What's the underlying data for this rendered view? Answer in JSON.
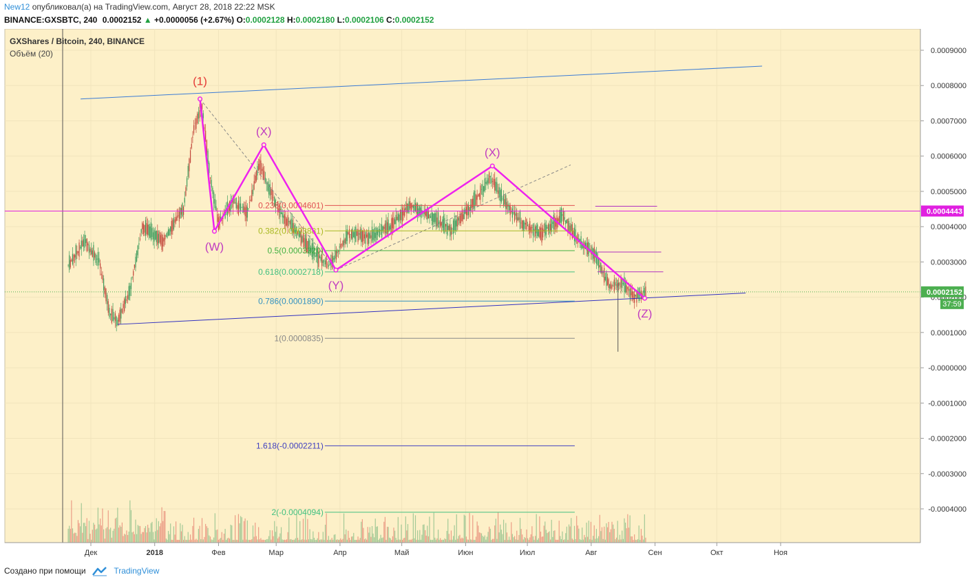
{
  "header": {
    "user": "New12",
    "published": "опубликовал(а) на TradingView.com, Август 28, 2018 22:22 MSK",
    "symbol": "BINANCE:GXSBTC, 240",
    "last": "0.0002152",
    "change": "+0.0000056 (+2.67%)",
    "o_label": "O:",
    "o": "0.0002128",
    "h_label": "H:",
    "h": "0.0002180",
    "l_label": "L:",
    "l": "0.0002106",
    "c_label": "C:",
    "c": "0.0002152"
  },
  "chart_data": {
    "type": "candlestick",
    "title": "GXShares / Bitcoin, 240, BINANCE",
    "subtitle": "Объём (20)",
    "ylim": [
      -0.00049,
      0.00094
    ],
    "y_ticks": [
      {
        "v": 0.0009,
        "label": "0.0009000"
      },
      {
        "v": 0.0008,
        "label": "0.0008000"
      },
      {
        "v": 0.0007,
        "label": "0.0007000"
      },
      {
        "v": 0.0006,
        "label": "0.0006000"
      },
      {
        "v": 0.0005,
        "label": "0.0005000"
      },
      {
        "v": 0.0004,
        "label": "0.0004000"
      },
      {
        "v": 0.0003,
        "label": "0.0003000"
      },
      {
        "v": 0.0002,
        "label": "0.0002000"
      },
      {
        "v": 0.0001,
        "label": "0.0001000"
      },
      {
        "v": 0.0,
        "label": "-0.0000000"
      },
      {
        "v": -0.0001,
        "label": "-0.0001000"
      },
      {
        "v": -0.0002,
        "label": "-0.0002000"
      },
      {
        "v": -0.0003,
        "label": "-0.0003000"
      },
      {
        "v": -0.0004,
        "label": "-0.0004000"
      }
    ],
    "x_ticks": [
      "Дек",
      "2018",
      "Фев",
      "Мар",
      "Апр",
      "Май",
      "Июн",
      "Июл",
      "Авг",
      "Сен",
      "Окт",
      "Ноя"
    ],
    "x_tick_days": [
      0,
      31,
      62,
      90,
      121,
      151,
      182,
      212,
      243,
      274,
      304,
      335
    ],
    "price_labels": [
      {
        "label": "0.0004443",
        "v": 0.0004443,
        "color": "#e020e0"
      },
      {
        "label": "0.0002152",
        "v": 0.0002152,
        "color": "#4caf50"
      }
    ],
    "countdown": "37:59",
    "path_points": [
      {
        "date": "2017-11-20",
        "v": 0.00029
      },
      {
        "date": "2017-11-28",
        "v": 0.00036
      },
      {
        "date": "2017-12-05",
        "v": 0.0003
      },
      {
        "date": "2017-12-10",
        "v": 0.00016
      },
      {
        "date": "2017-12-14",
        "v": 0.00013
      },
      {
        "date": "2017-12-20",
        "v": 0.00022
      },
      {
        "date": "2017-12-26",
        "v": 0.0004
      },
      {
        "date": "2018-01-05",
        "v": 0.00036
      },
      {
        "date": "2018-01-15",
        "v": 0.00045
      },
      {
        "date": "2018-01-20",
        "v": 0.00068
      },
      {
        "date": "2018-01-24",
        "v": 0.00074
      },
      {
        "date": "2018-01-28",
        "v": 0.00054
      },
      {
        "date": "2018-02-01",
        "v": 0.00041
      },
      {
        "date": "2018-02-08",
        "v": 0.00047
      },
      {
        "date": "2018-02-15",
        "v": 0.00044
      },
      {
        "date": "2018-02-21",
        "v": 0.00058
      },
      {
        "date": "2018-02-26",
        "v": 0.0005
      },
      {
        "date": "2018-03-04",
        "v": 0.00043
      },
      {
        "date": "2018-03-12",
        "v": 0.00038
      },
      {
        "date": "2018-03-20",
        "v": 0.00032
      },
      {
        "date": "2018-03-27",
        "v": 0.00029
      },
      {
        "date": "2018-04-05",
        "v": 0.00038
      },
      {
        "date": "2018-04-15",
        "v": 0.00037
      },
      {
        "date": "2018-04-25",
        "v": 0.0004
      },
      {
        "date": "2018-05-05",
        "v": 0.00046
      },
      {
        "date": "2018-05-15",
        "v": 0.00043
      },
      {
        "date": "2018-05-25",
        "v": 0.00039
      },
      {
        "date": "2018-06-05",
        "v": 0.00047
      },
      {
        "date": "2018-06-13",
        "v": 0.00054
      },
      {
        "date": "2018-06-20",
        "v": 0.00047
      },
      {
        "date": "2018-06-28",
        "v": 0.00041
      },
      {
        "date": "2018-07-08",
        "v": 0.00038
      },
      {
        "date": "2018-07-18",
        "v": 0.00043
      },
      {
        "date": "2018-07-26",
        "v": 0.00036
      },
      {
        "date": "2018-08-03",
        "v": 0.00032
      },
      {
        "date": "2018-08-10",
        "v": 0.00023
      },
      {
        "date": "2018-08-16",
        "v": 0.00024
      },
      {
        "date": "2018-08-22",
        "v": 0.0002
      },
      {
        "date": "2018-08-28",
        "v": 0.000215
      }
    ],
    "wave_points": [
      {
        "label": "(1)",
        "date": "2018-01-23",
        "v": 0.000762,
        "color": "#e53935"
      },
      {
        "label": "(W)",
        "date": "2018-01-30",
        "v": 0.000387,
        "color": "#c03cc0"
      },
      {
        "label": "(X)",
        "date": "2018-02-23",
        "v": 0.000632,
        "color": "#c03cc0"
      },
      {
        "label": "(Y)",
        "date": "2018-03-30",
        "v": 0.000277,
        "color": "#c03cc0"
      },
      {
        "label": "(X)",
        "date": "2018-06-14",
        "v": 0.000572,
        "color": "#c03cc0"
      },
      {
        "label": "(Z)",
        "date": "2018-08-27",
        "v": 0.000197,
        "color": "#c03cc0"
      }
    ],
    "fib_levels": [
      {
        "ratio": "0.236",
        "label": "0.236(0.0004601)",
        "v": 0.0004601,
        "color": "#e05050"
      },
      {
        "ratio": "0.382",
        "label": "0.382(0.0003881)",
        "v": 0.0003881,
        "color": "#a8b820"
      },
      {
        "ratio": "0.5",
        "label": "0.5(0.0003320)",
        "v": 0.000332,
        "color": "#40b040"
      },
      {
        "ratio": "0.618",
        "label": "0.618(0.0002718)",
        "v": 0.0002718,
        "color": "#40c080"
      },
      {
        "ratio": "0.786",
        "label": "0.786(0.0001890)",
        "v": 0.000189,
        "color": "#3090c0"
      },
      {
        "ratio": "1",
        "label": "1(0.0000835)",
        "v": 8.35e-05,
        "color": "#888888"
      },
      {
        "ratio": "1.618",
        "label": "1.618(-0.0002211)",
        "v": -0.0002211,
        "color": "#4040c0"
      },
      {
        "ratio": "2",
        "label": "2(-0.0004094)",
        "v": -0.0004094,
        "color": "#40c080"
      }
    ],
    "trendlines": [
      {
        "from": {
          "date": "2017-11-26",
          "v": 0.000762
        },
        "to": {
          "date": "2018-10-23",
          "v": 0.000855
        },
        "color": "#3a7bd5"
      },
      {
        "from": {
          "date": "2017-12-14",
          "v": 0.000123
        },
        "to": {
          "date": "2018-10-15",
          "v": 0.000212
        },
        "color": "#3030c0"
      },
      {
        "from": {
          "date": "2018-01-23",
          "v": 0.000762
        },
        "to": {
          "date": "2018-03-30",
          "v": 0.000277
        },
        "color": "#888888",
        "dashed": true
      },
      {
        "from": {
          "date": "2018-03-30",
          "v": 0.000277
        },
        "to": {
          "date": "2018-07-22",
          "v": 0.000575
        },
        "color": "#888888",
        "dashed": true
      }
    ],
    "projection_lines": [
      {
        "from": "2018-08-03",
        "to": "2018-09-02",
        "v": 0.000458
      },
      {
        "from": "2018-08-04",
        "to": "2018-09-04",
        "v": 0.000328
      },
      {
        "from": "2018-08-04",
        "to": "2018-09-05",
        "v": 0.000272
      }
    ],
    "current_price": {
      "v": 0.0002152,
      "label": "0.0002152"
    },
    "horizontal_line": {
      "v": 0.0004443
    }
  },
  "footer": {
    "created_with": "Создано при помощи",
    "brand": "TradingView"
  }
}
